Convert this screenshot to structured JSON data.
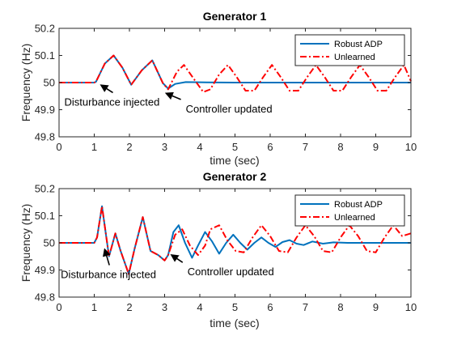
{
  "colors": {
    "robust": "#0072BD",
    "unlearned": "#FF0000",
    "axis": "#262626",
    "arrow": "#000000"
  },
  "chart_data": [
    {
      "type": "line",
      "title": "Generator 1",
      "xlabel": "time (sec)",
      "ylabel": "Frequency (Hz)",
      "xlim": [
        0,
        10
      ],
      "ylim": [
        49.8,
        50.2
      ],
      "xticks": [
        0,
        1,
        2,
        3,
        4,
        5,
        6,
        7,
        8,
        9,
        10
      ],
      "xtick_labels": [
        "0",
        "1",
        "2",
        "3",
        "4",
        "5",
        "6",
        "7",
        "8",
        "9",
        "10"
      ],
      "yticks": [
        49.8,
        49.9,
        50,
        50.1,
        50.2
      ],
      "ytick_labels": [
        "49.8",
        "49.9",
        "50",
        "50.1",
        "50.2"
      ],
      "grid": false,
      "legend": "top-right",
      "series": [
        {
          "name": "Robust ADP",
          "color": "#0072BD",
          "style": "solid",
          "x": [
            0,
            1,
            1.05,
            1.3,
            1.55,
            1.8,
            2.05,
            2.35,
            2.65,
            2.95,
            3.1,
            3.3,
            3.6,
            4,
            5,
            6,
            7,
            8,
            9,
            10
          ],
          "y": [
            50,
            50,
            50.003,
            50.07,
            50.1,
            50.055,
            49.992,
            50.045,
            50.082,
            49.998,
            49.978,
            49.995,
            50.002,
            50.001,
            50,
            50,
            50,
            50,
            50,
            50
          ]
        },
        {
          "name": "Unlearned",
          "color": "#FF0000",
          "style": "dashdot",
          "x": [
            0,
            1,
            1.05,
            1.3,
            1.55,
            1.8,
            2.05,
            2.35,
            2.65,
            2.95,
            3.1,
            3.35,
            3.55,
            3.85,
            4.1,
            4.3,
            4.55,
            4.8,
            5.05,
            5.3,
            5.55,
            5.8,
            6.05,
            6.3,
            6.55,
            6.8,
            7.05,
            7.3,
            7.55,
            7.8,
            8.05,
            8.3,
            8.55,
            8.8,
            9.05,
            9.3,
            9.55,
            9.8,
            10
          ],
          "y": [
            50,
            50,
            50.003,
            50.07,
            50.1,
            50.055,
            49.992,
            50.045,
            50.082,
            49.998,
            49.975,
            50.04,
            50.065,
            50.01,
            49.965,
            49.975,
            50.03,
            50.065,
            50.02,
            49.97,
            49.97,
            50.02,
            50.065,
            50.02,
            49.97,
            49.97,
            50.02,
            50.065,
            50.02,
            49.97,
            49.97,
            50.02,
            50.065,
            50.02,
            49.97,
            49.97,
            50.02,
            50.065,
            50.005
          ]
        }
      ],
      "annotations": [
        {
          "text": "Disturbance injected",
          "x": 1.2,
          "y": 49.99,
          "text_x": 0.15,
          "text_y": 49.915
        },
        {
          "text": "Controller updated",
          "x": 3.05,
          "y": 49.96,
          "text_x": 3.6,
          "text_y": 49.89
        }
      ]
    },
    {
      "type": "line",
      "title": "Generator 2",
      "xlabel": "time (sec)",
      "ylabel": "Frequency (Hz)",
      "xlim": [
        0,
        10
      ],
      "ylim": [
        49.8,
        50.2
      ],
      "xticks": [
        0,
        1,
        2,
        3,
        4,
        5,
        6,
        7,
        8,
        9,
        10
      ],
      "xtick_labels": [
        "0",
        "1",
        "2",
        "3",
        "4",
        "5",
        "6",
        "7",
        "8",
        "9",
        "10"
      ],
      "yticks": [
        49.8,
        49.9,
        50,
        50.1,
        50.2
      ],
      "ytick_labels": [
        "49.8",
        "49.9",
        "50",
        "50.1",
        "50.2"
      ],
      "grid": false,
      "legend": "top-right",
      "series": [
        {
          "name": "Robust ADP",
          "color": "#0072BD",
          "style": "solid",
          "x": [
            0,
            1,
            1.08,
            1.22,
            1.42,
            1.6,
            1.75,
            1.98,
            2.15,
            2.38,
            2.6,
            2.82,
            3,
            3.1,
            3.25,
            3.4,
            3.58,
            3.78,
            3.95,
            4.15,
            4.35,
            4.55,
            4.75,
            4.95,
            5.15,
            5.35,
            5.55,
            5.75,
            5.95,
            6.15,
            6.35,
            6.55,
            6.75,
            6.95,
            7.2,
            7.5,
            7.8,
            8.2,
            8.6,
            9,
            9.5,
            10
          ],
          "y": [
            50,
            50,
            50.02,
            50.135,
            49.95,
            50.035,
            49.97,
            49.885,
            49.98,
            50.095,
            49.97,
            49.955,
            49.935,
            49.955,
            50.04,
            50.065,
            50.0,
            49.945,
            49.99,
            50.04,
            50.005,
            49.96,
            50.0,
            50.03,
            50.0,
            49.975,
            50.0,
            50.02,
            50.0,
            49.985,
            50.003,
            50.01,
            49.997,
            49.992,
            50.005,
            49.997,
            50.002,
            50.0,
            50.0,
            50.0,
            50.0,
            50.0
          ]
        },
        {
          "name": "Unlearned",
          "color": "#FF0000",
          "style": "dashdot",
          "x": [
            0,
            1,
            1.08,
            1.22,
            1.42,
            1.6,
            1.75,
            1.98,
            2.15,
            2.38,
            2.6,
            2.82,
            3,
            3.1,
            3.3,
            3.5,
            3.72,
            3.95,
            4.15,
            4.3,
            4.55,
            4.78,
            5.02,
            5.25,
            5.5,
            5.75,
            6.0,
            6.25,
            6.5,
            6.75,
            7.0,
            7.25,
            7.5,
            7.75,
            8.0,
            8.25,
            8.5,
            8.75,
            9.0,
            9.25,
            9.5,
            9.75,
            10
          ],
          "y": [
            50,
            50,
            50.02,
            50.135,
            49.95,
            50.035,
            49.97,
            49.885,
            49.98,
            50.095,
            49.97,
            49.955,
            49.935,
            49.955,
            50.03,
            50.05,
            49.99,
            49.955,
            49.99,
            50.05,
            50.065,
            50.01,
            49.97,
            49.965,
            50.02,
            50.065,
            50.025,
            49.97,
            49.965,
            50.02,
            50.065,
            50.025,
            49.97,
            49.965,
            50.02,
            50.065,
            50.025,
            49.97,
            49.965,
            50.02,
            50.065,
            50.025,
            50.035
          ]
        }
      ],
      "annotations": [
        {
          "text": "Disturbance injected",
          "x": 1.3,
          "y": 49.975,
          "text_x": 0.05,
          "text_y": 49.87
        },
        {
          "text": "Controller updated",
          "x": 3.2,
          "y": 49.955,
          "text_x": 3.65,
          "text_y": 49.88
        }
      ]
    }
  ]
}
